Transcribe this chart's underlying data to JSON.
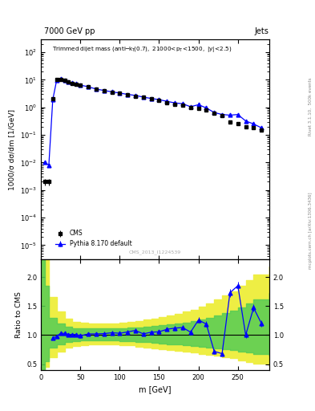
{
  "title_top": "7000 GeV pp",
  "title_right": "Jets",
  "ylabel_main": "1000/σ dσ/dm [1/GeV]",
  "ylabel_ratio": "Ratio to CMS",
  "xlabel": "m [GeV]",
  "watermark": "CMS_2013_I1224539",
  "right_label": "mcplots.cern.ch [arXiv:1306.3436]",
  "rivet_label": "Rivet 3.1.10,  500k events",
  "cms_x": [
    5,
    10,
    15,
    20,
    25,
    30,
    35,
    40,
    45,
    50,
    60,
    70,
    80,
    90,
    100,
    110,
    120,
    130,
    140,
    150,
    160,
    170,
    180,
    190,
    200,
    210,
    220,
    230,
    240,
    250,
    260,
    270,
    280
  ],
  "cms_y": [
    0.002,
    0.002,
    2.0,
    10.0,
    10.5,
    9.5,
    8.5,
    7.5,
    7.0,
    6.5,
    5.5,
    4.5,
    4.0,
    3.5,
    3.2,
    2.8,
    2.5,
    2.3,
    2.0,
    1.8,
    1.5,
    1.3,
    1.2,
    1.0,
    0.9,
    0.8,
    0.6,
    0.5,
    0.3,
    0.25,
    0.2,
    0.18,
    0.15
  ],
  "cms_yerr": [
    0.0005,
    0.0005,
    0.2,
    0.5,
    0.5,
    0.4,
    0.4,
    0.4,
    0.3,
    0.3,
    0.3,
    0.2,
    0.2,
    0.2,
    0.15,
    0.12,
    0.1,
    0.1,
    0.1,
    0.08,
    0.07,
    0.06,
    0.06,
    0.05,
    0.05,
    0.04,
    0.04,
    0.03,
    0.02,
    0.02,
    0.02,
    0.02,
    0.015
  ],
  "mc_x": [
    5,
    10,
    15,
    20,
    25,
    30,
    35,
    40,
    45,
    50,
    60,
    70,
    80,
    90,
    100,
    110,
    120,
    130,
    140,
    150,
    160,
    170,
    180,
    190,
    200,
    210,
    220,
    230,
    240,
    250,
    260,
    270,
    280
  ],
  "mc_y": [
    0.01,
    0.008,
    1.9,
    9.8,
    10.8,
    9.8,
    8.6,
    7.6,
    7.1,
    6.4,
    5.6,
    4.6,
    4.1,
    3.65,
    3.3,
    2.95,
    2.7,
    2.35,
    2.1,
    1.9,
    1.65,
    1.45,
    1.35,
    1.05,
    1.25,
    0.95,
    0.65,
    0.55,
    0.52,
    0.55,
    0.32,
    0.25,
    0.18
  ],
  "mc_yerr": [
    0.001,
    0.001,
    0.05,
    0.1,
    0.1,
    0.1,
    0.08,
    0.08,
    0.07,
    0.06,
    0.06,
    0.05,
    0.04,
    0.04,
    0.03,
    0.03,
    0.03,
    0.03,
    0.02,
    0.02,
    0.02,
    0.02,
    0.02,
    0.02,
    0.02,
    0.02,
    0.02,
    0.02,
    0.02,
    0.02,
    0.02,
    0.015,
    0.012
  ],
  "ratio_x": [
    15,
    20,
    25,
    30,
    35,
    40,
    45,
    50,
    60,
    70,
    80,
    90,
    100,
    110,
    120,
    130,
    140,
    150,
    160,
    170,
    180,
    190,
    200,
    210,
    220,
    230,
    240,
    250,
    260,
    270,
    280
  ],
  "ratio_y": [
    0.95,
    0.98,
    1.03,
    1.03,
    1.01,
    1.01,
    1.01,
    0.985,
    1.02,
    1.02,
    1.025,
    1.04,
    1.031,
    1.054,
    1.08,
    1.02,
    1.05,
    1.056,
    1.1,
    1.12,
    1.13,
    1.05,
    1.26,
    1.19,
    0.72,
    0.68,
    1.73,
    1.85,
    1.0,
    1.47,
    1.2
  ],
  "ratio_yerr": [
    0.03,
    0.03,
    0.03,
    0.03,
    0.03,
    0.03,
    0.03,
    0.03,
    0.03,
    0.03,
    0.03,
    0.03,
    0.03,
    0.03,
    0.03,
    0.03,
    0.03,
    0.03,
    0.03,
    0.04,
    0.04,
    0.04,
    0.05,
    0.05,
    0.04,
    0.04,
    0.07,
    0.07,
    0.05,
    0.06,
    0.06
  ],
  "green_band_x": [
    0,
    5,
    10,
    20,
    30,
    40,
    50,
    60,
    70,
    80,
    90,
    100,
    110,
    120,
    130,
    140,
    150,
    160,
    170,
    180,
    190,
    200,
    210,
    220,
    230,
    240,
    250,
    260,
    270,
    290
  ],
  "green_band_lo": [
    0.4,
    0.55,
    0.78,
    0.84,
    0.88,
    0.895,
    0.905,
    0.91,
    0.91,
    0.91,
    0.91,
    0.9,
    0.895,
    0.885,
    0.875,
    0.865,
    0.855,
    0.845,
    0.835,
    0.825,
    0.815,
    0.8,
    0.785,
    0.77,
    0.755,
    0.74,
    0.72,
    0.7,
    0.68,
    0.64
  ],
  "green_band_hi": [
    2.6,
    1.85,
    1.3,
    1.2,
    1.15,
    1.12,
    1.11,
    1.11,
    1.11,
    1.11,
    1.11,
    1.12,
    1.125,
    1.135,
    1.145,
    1.155,
    1.17,
    1.185,
    1.2,
    1.22,
    1.245,
    1.27,
    1.3,
    1.34,
    1.38,
    1.42,
    1.48,
    1.55,
    1.62,
    1.72
  ],
  "yellow_band_x": [
    0,
    5,
    10,
    20,
    30,
    40,
    50,
    60,
    70,
    80,
    90,
    100,
    110,
    120,
    130,
    140,
    150,
    160,
    170,
    180,
    190,
    200,
    210,
    220,
    230,
    240,
    250,
    260,
    270,
    290
  ],
  "yellow_band_lo": [
    0.35,
    0.45,
    0.62,
    0.72,
    0.78,
    0.81,
    0.83,
    0.84,
    0.84,
    0.84,
    0.84,
    0.83,
    0.82,
    0.8,
    0.79,
    0.775,
    0.76,
    0.745,
    0.73,
    0.715,
    0.7,
    0.68,
    0.66,
    0.64,
    0.62,
    0.6,
    0.57,
    0.54,
    0.51,
    0.46
  ],
  "yellow_band_hi": [
    2.85,
    2.3,
    1.65,
    1.4,
    1.28,
    1.23,
    1.21,
    1.2,
    1.2,
    1.2,
    1.205,
    1.215,
    1.23,
    1.245,
    1.265,
    1.285,
    1.31,
    1.34,
    1.37,
    1.405,
    1.44,
    1.49,
    1.545,
    1.61,
    1.68,
    1.755,
    1.845,
    1.94,
    2.04,
    2.18
  ],
  "xlim": [
    0,
    290
  ],
  "ylim_main": [
    3e-06,
    300.0
  ],
  "ylim_ratio": [
    0.4,
    2.3
  ],
  "ratio_yticks": [
    0.5,
    1.0,
    1.5,
    2.0
  ],
  "color_cms": "black",
  "color_mc": "blue",
  "color_green": "#55cc55",
  "color_yellow": "#eeee44",
  "color_line": "black"
}
